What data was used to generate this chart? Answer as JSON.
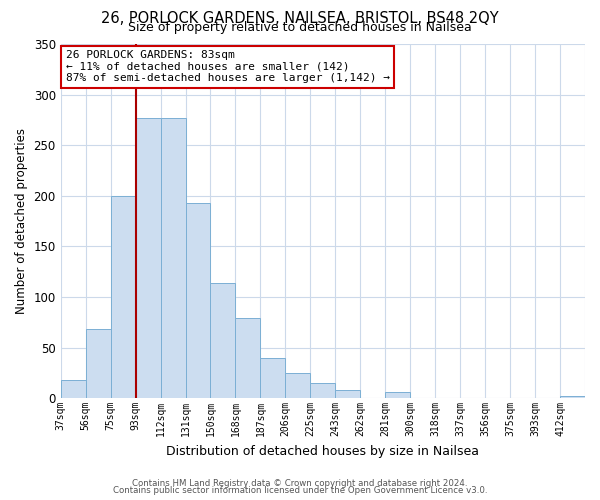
{
  "title": "26, PORLOCK GARDENS, NAILSEA, BRISTOL, BS48 2QY",
  "subtitle": "Size of property relative to detached houses in Nailsea",
  "xlabel": "Distribution of detached houses by size in Nailsea",
  "ylabel": "Number of detached properties",
  "bin_labels": [
    "37sqm",
    "56sqm",
    "75sqm",
    "93sqm",
    "112sqm",
    "131sqm",
    "150sqm",
    "168sqm",
    "187sqm",
    "206sqm",
    "225sqm",
    "243sqm",
    "262sqm",
    "281sqm",
    "300sqm",
    "318sqm",
    "337sqm",
    "356sqm",
    "375sqm",
    "393sqm",
    "412sqm"
  ],
  "bar_heights": [
    18,
    68,
    200,
    277,
    277,
    193,
    114,
    79,
    40,
    25,
    15,
    8,
    0,
    6,
    0,
    0,
    0,
    0,
    0,
    0,
    2
  ],
  "bar_color": "#ccddf0",
  "bar_edge_color": "#7bafd4",
  "vline_x_idx": 2,
  "vline_color": "#aa0000",
  "annotation_title": "26 PORLOCK GARDENS: 83sqm",
  "annotation_line1": "← 11% of detached houses are smaller (142)",
  "annotation_line2": "87% of semi-detached houses are larger (1,142) →",
  "annotation_box_color": "#ffffff",
  "annotation_box_edge": "#cc0000",
  "ylim": [
    0,
    350
  ],
  "yticks": [
    0,
    50,
    100,
    150,
    200,
    250,
    300,
    350
  ],
  "footer1": "Contains HM Land Registry data © Crown copyright and database right 2024.",
  "footer2": "Contains public sector information licensed under the Open Government Licence v3.0.",
  "background_color": "#ffffff",
  "grid_color": "#ccd9ea"
}
